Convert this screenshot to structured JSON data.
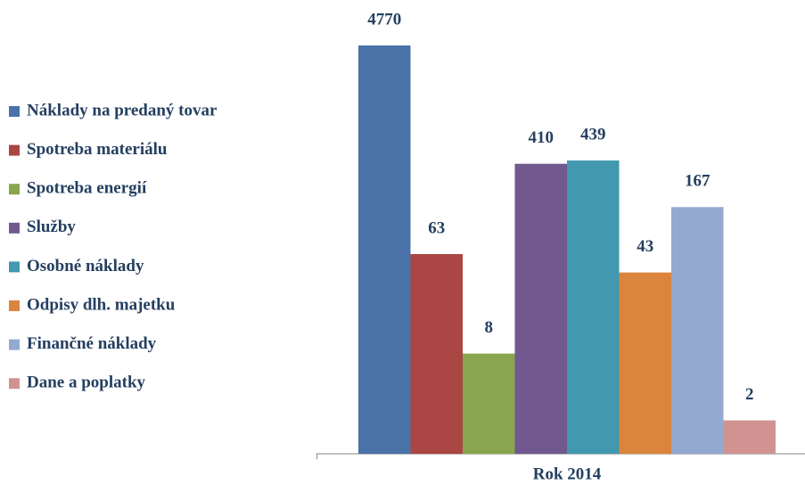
{
  "chart_data": {
    "type": "bar",
    "categories": [
      "Rok 2014"
    ],
    "series": [
      {
        "name": "Náklady na predaný tovar",
        "color": "#4a72a8",
        "values": [
          4770
        ]
      },
      {
        "name": "Spotreba materiálu",
        "color": "#aa4643",
        "values": [
          63
        ]
      },
      {
        "name": "Spotreba energií",
        "color": "#89a54e",
        "values": [
          8
        ]
      },
      {
        "name": "Služby",
        "color": "#71588f",
        "values": [
          410
        ]
      },
      {
        "name": "Osobné náklady",
        "color": "#4198af",
        "values": [
          439
        ]
      },
      {
        "name": "Odpisy dlh. majetku",
        "color": "#db843d",
        "values": [
          43
        ]
      },
      {
        "name": "Finančné náklady",
        "color": "#93a9cf",
        "values": [
          167
        ]
      },
      {
        "name": "Dane a poplatky",
        "color": "#d09392",
        "values": [
          2
        ]
      }
    ],
    "ylim": [
      1,
      10000
    ],
    "log_scale": true,
    "legend": "left"
  }
}
